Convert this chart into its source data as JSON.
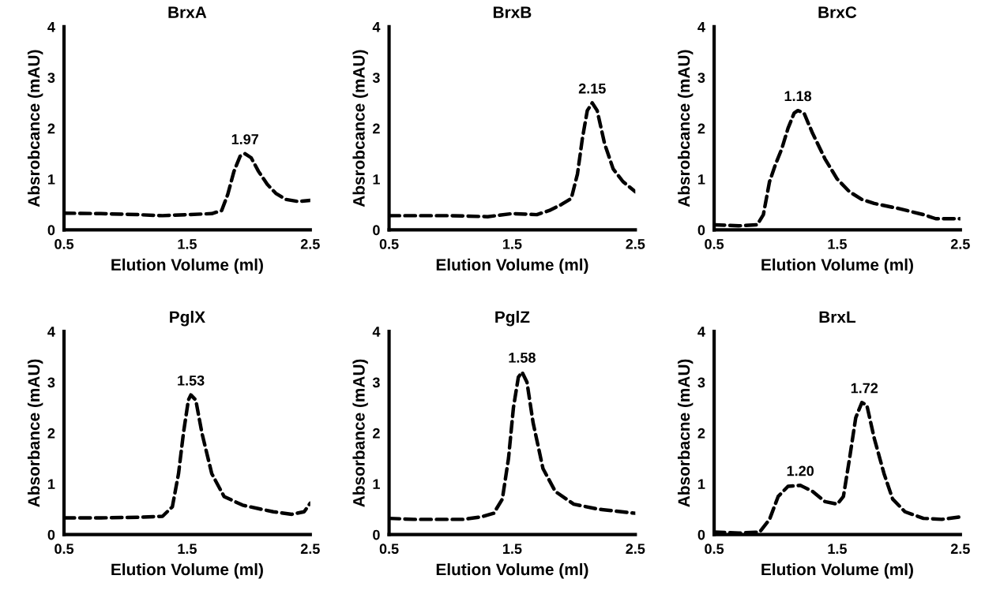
{
  "chart_data": [
    {
      "type": "line",
      "title": "BrxA",
      "xlabel": "Elution Volume (ml)",
      "ylabel": "Absrobcance (mAU)",
      "xlim": [
        0.5,
        2.5
      ],
      "ylim": [
        0,
        4
      ],
      "xticks": [
        0.5,
        1.5,
        2.5
      ],
      "yticks": [
        0,
        1,
        2,
        3,
        4
      ],
      "grid": false,
      "legend": false,
      "marker": "none",
      "line_style": "dashed",
      "series": [
        {
          "color": "#000000",
          "x": [
            0.5,
            0.8,
            1.1,
            1.3,
            1.5,
            1.7,
            1.78,
            1.83,
            1.88,
            1.93,
            1.97,
            2.02,
            2.08,
            2.15,
            2.22,
            2.3,
            2.4,
            2.5
          ],
          "values": [
            0.33,
            0.32,
            0.3,
            0.28,
            0.3,
            0.32,
            0.38,
            0.7,
            1.15,
            1.45,
            1.5,
            1.42,
            1.15,
            0.9,
            0.72,
            0.6,
            0.56,
            0.58
          ]
        }
      ],
      "annotations": [
        {
          "text": "1.97",
          "x": 1.97,
          "y": 1.5
        }
      ]
    },
    {
      "type": "line",
      "title": "BrxB",
      "xlabel": "Elution Volume (ml)",
      "ylabel": "Absrobcance (mAU)",
      "xlim": [
        0.5,
        2.5
      ],
      "ylim": [
        0,
        4
      ],
      "xticks": [
        0.5,
        1.5,
        2.5
      ],
      "yticks": [
        0,
        1,
        2,
        3,
        4
      ],
      "grid": false,
      "legend": false,
      "marker": "none",
      "line_style": "dashed",
      "series": [
        {
          "color": "#000000",
          "x": [
            0.5,
            0.8,
            1.0,
            1.3,
            1.5,
            1.7,
            1.8,
            1.9,
            1.98,
            2.03,
            2.07,
            2.11,
            2.15,
            2.19,
            2.25,
            2.32,
            2.4,
            2.5
          ],
          "values": [
            0.28,
            0.28,
            0.28,
            0.26,
            0.32,
            0.3,
            0.38,
            0.5,
            0.62,
            1.1,
            1.8,
            2.35,
            2.5,
            2.35,
            1.7,
            1.2,
            0.95,
            0.75
          ]
        }
      ],
      "annotations": [
        {
          "text": "2.15",
          "x": 2.15,
          "y": 2.5
        }
      ]
    },
    {
      "type": "line",
      "title": "BrxC",
      "xlabel": "Elution Volume (ml)",
      "ylabel": "Absrobcance (mAU)",
      "xlim": [
        0.5,
        2.5
      ],
      "ylim": [
        0,
        4
      ],
      "xticks": [
        0.5,
        1.5,
        2.5
      ],
      "yticks": [
        0,
        1,
        2,
        3,
        4
      ],
      "grid": false,
      "legend": false,
      "marker": "none",
      "line_style": "dashed",
      "series": [
        {
          "color": "#000000",
          "x": [
            0.5,
            0.7,
            0.85,
            0.9,
            0.95,
            1.0,
            1.05,
            1.1,
            1.15,
            1.18,
            1.23,
            1.3,
            1.4,
            1.5,
            1.6,
            1.7,
            1.8,
            2.0,
            2.2,
            2.3,
            2.5
          ],
          "values": [
            0.1,
            0.08,
            0.1,
            0.3,
            0.95,
            1.3,
            1.6,
            2.0,
            2.3,
            2.35,
            2.3,
            1.9,
            1.4,
            1.0,
            0.75,
            0.6,
            0.52,
            0.42,
            0.3,
            0.22,
            0.22
          ]
        }
      ],
      "annotations": [
        {
          "text": "1.18",
          "x": 1.18,
          "y": 2.35
        }
      ]
    },
    {
      "type": "line",
      "title": "PglX",
      "xlabel": "Elution Volume (ml)",
      "ylabel": "Absorbance (mAU)",
      "xlim": [
        0.5,
        2.5
      ],
      "ylim": [
        0,
        4
      ],
      "xticks": [
        0.5,
        1.5,
        2.5
      ],
      "yticks": [
        0,
        1,
        2,
        3,
        4
      ],
      "grid": false,
      "legend": false,
      "marker": "none",
      "line_style": "dashed",
      "series": [
        {
          "color": "#000000",
          "x": [
            0.5,
            0.8,
            1.1,
            1.3,
            1.38,
            1.43,
            1.47,
            1.51,
            1.53,
            1.57,
            1.62,
            1.7,
            1.8,
            1.95,
            2.1,
            2.2,
            2.35,
            2.45,
            2.5
          ],
          "values": [
            0.33,
            0.33,
            0.34,
            0.36,
            0.55,
            1.2,
            2.0,
            2.65,
            2.75,
            2.65,
            2.0,
            1.2,
            0.75,
            0.58,
            0.5,
            0.45,
            0.4,
            0.45,
            0.62
          ]
        }
      ],
      "annotations": [
        {
          "text": "1.53",
          "x": 1.53,
          "y": 2.75
        }
      ]
    },
    {
      "type": "line",
      "title": "PglZ",
      "xlabel": "Elution Volume (ml)",
      "ylabel": "Absorbance (mAU)",
      "xlim": [
        0.5,
        2.5
      ],
      "ylim": [
        0,
        4
      ],
      "xticks": [
        0.5,
        1.5,
        2.5
      ],
      "yticks": [
        0,
        1,
        2,
        3,
        4
      ],
      "grid": false,
      "legend": false,
      "marker": "none",
      "line_style": "dashed",
      "series": [
        {
          "color": "#000000",
          "x": [
            0.5,
            0.7,
            0.9,
            1.1,
            1.25,
            1.35,
            1.42,
            1.47,
            1.51,
            1.55,
            1.58,
            1.62,
            1.67,
            1.75,
            1.85,
            2.0,
            2.2,
            2.5
          ],
          "values": [
            0.32,
            0.3,
            0.3,
            0.3,
            0.35,
            0.42,
            0.7,
            1.5,
            2.5,
            3.1,
            3.2,
            3.0,
            2.2,
            1.3,
            0.85,
            0.6,
            0.5,
            0.42
          ]
        }
      ],
      "annotations": [
        {
          "text": "1.58",
          "x": 1.58,
          "y": 3.2
        }
      ]
    },
    {
      "type": "line",
      "title": "BrxL",
      "xlabel": "Elution Volume (ml)",
      "ylabel": "Absorbacne (mAU)",
      "xlim": [
        0.5,
        2.5
      ],
      "ylim": [
        0,
        4
      ],
      "xticks": [
        0.5,
        1.5,
        2.5
      ],
      "yticks": [
        0,
        1,
        2,
        3,
        4
      ],
      "grid": false,
      "legend": false,
      "marker": "none",
      "line_style": "dashed",
      "series": [
        {
          "color": "#000000",
          "x": [
            0.5,
            0.7,
            0.87,
            0.95,
            1.02,
            1.1,
            1.2,
            1.3,
            1.4,
            1.5,
            1.55,
            1.6,
            1.65,
            1.7,
            1.74,
            1.8,
            1.88,
            1.95,
            2.05,
            2.2,
            2.35,
            2.5
          ],
          "values": [
            0.05,
            0.03,
            0.05,
            0.3,
            0.75,
            0.95,
            0.97,
            0.85,
            0.65,
            0.6,
            0.75,
            1.5,
            2.3,
            2.6,
            2.55,
            1.9,
            1.2,
            0.7,
            0.45,
            0.32,
            0.3,
            0.35
          ]
        }
      ],
      "annotations": [
        {
          "text": "1.20",
          "x": 1.2,
          "y": 0.97
        },
        {
          "text": "1.72",
          "x": 1.72,
          "y": 2.6
        }
      ]
    }
  ]
}
